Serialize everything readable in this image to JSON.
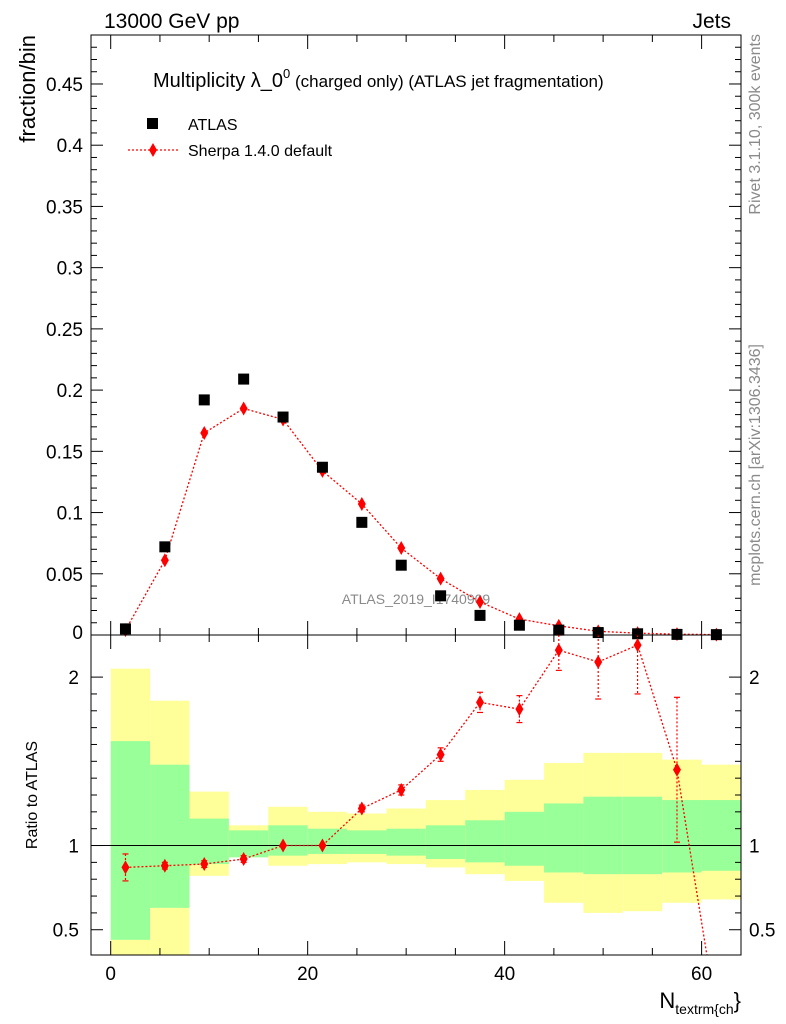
{
  "header": {
    "left": "13000 GeV pp",
    "right": "Jets"
  },
  "side_text": {
    "top": "Rivet 3.1.10,  300k events",
    "bottom": "mcplots.cern.ch [arXiv:1306.3436]"
  },
  "watermark": "ATLAS_2019_I1740909",
  "title": {
    "main": "Multiplicity λ_0",
    "sup": "0",
    "tail": " (charged only) (ATLAS jet fragmentation)"
  },
  "xlabel": {
    "main": "N",
    "sub": "textrm{ch",
    "close": "}"
  },
  "legend": {
    "data_label": "ATLAS",
    "mc_label": "Sherpa 1.4.0 default"
  },
  "colors": {
    "data": "#000000",
    "mc": "#ff0000",
    "band_inner": "#99ff99",
    "band_outer": "#ffff99"
  },
  "chart_data": [
    {
      "type": "scatter",
      "ylabel": "fraction/bin",
      "xlim": [
        -2,
        64
      ],
      "ylim": [
        0,
        0.49
      ],
      "xticks": [
        0,
        20,
        40,
        60
      ],
      "yticks": [
        0.05,
        0.1,
        0.15,
        0.2,
        0.25,
        0.3,
        0.35,
        0.4,
        0.45
      ],
      "ytick_labels": [
        "0.05",
        "0.1",
        "0.15",
        "0.2",
        "0.25",
        "0.3",
        "0.35",
        "0.4",
        "0.45"
      ],
      "y_zero_label": "0",
      "x": [
        1.5,
        5.5,
        9.5,
        13.5,
        17.5,
        21.5,
        25.5,
        29.5,
        33.5,
        37.5,
        41.5,
        45.5,
        49.5,
        53.5,
        57.5,
        61.5
      ],
      "series": [
        {
          "name": "ATLAS",
          "values": [
            0.005,
            0.072,
            0.192,
            0.209,
            0.178,
            0.137,
            0.092,
            0.057,
            0.032,
            0.016,
            0.008,
            0.004,
            0.002,
            0.001,
            0.0005,
            0.0003
          ]
        },
        {
          "name": "Sherpa 1.4.0 default",
          "values": [
            0.004,
            0.061,
            0.165,
            0.185,
            0.176,
            0.134,
            0.107,
            0.071,
            0.046,
            0.027,
            0.013,
            0.0075,
            0.003,
            0.0015,
            0.0007,
            0.0003
          ]
        }
      ]
    },
    {
      "type": "line",
      "ylabel": "Ratio to ATLAS",
      "xlim": [
        -2,
        64
      ],
      "ylim": [
        0.35,
        2.25
      ],
      "yticks": [
        0.5,
        1,
        2
      ],
      "ytick_labels": [
        "0.5",
        "1",
        "2"
      ],
      "bin_edges": [
        0,
        4,
        8,
        12,
        16,
        20,
        24,
        28,
        32,
        36,
        40,
        44,
        48,
        52,
        56,
        60,
        64
      ],
      "band_inner_lo": [
        0.44,
        0.63,
        0.89,
        0.93,
        0.94,
        0.95,
        0.95,
        0.94,
        0.92,
        0.9,
        0.88,
        0.84,
        0.83,
        0.83,
        0.84,
        0.85
      ],
      "band_inner_hi": [
        1.62,
        1.48,
        1.16,
        1.09,
        1.12,
        1.1,
        1.09,
        1.1,
        1.12,
        1.15,
        1.2,
        1.25,
        1.29,
        1.29,
        1.27,
        1.27
      ],
      "band_outer_lo": [
        0.3,
        0.3,
        0.82,
        0.93,
        0.88,
        0.89,
        0.9,
        0.89,
        0.87,
        0.83,
        0.79,
        0.66,
        0.6,
        0.61,
        0.66,
        0.68
      ],
      "band_outer_hi": [
        2.05,
        1.86,
        1.32,
        1.12,
        1.23,
        1.2,
        1.19,
        1.22,
        1.27,
        1.33,
        1.39,
        1.49,
        1.55,
        1.55,
        1.51,
        1.48
      ],
      "x": [
        1.5,
        5.5,
        9.5,
        13.5,
        17.5,
        21.5,
        25.5,
        29.5,
        33.5,
        37.5,
        41.5,
        45.5,
        49.5,
        53.5,
        57.5
      ],
      "ratio": [
        0.87,
        0.88,
        0.89,
        0.92,
        1.0,
        1.0,
        1.22,
        1.33,
        1.54,
        1.85,
        1.81,
        2.16,
        2.09,
        2.19,
        1.45
      ],
      "ratio_err": [
        0.08,
        0.02,
        0.02,
        0.02,
        0.01,
        0.01,
        0.02,
        0.03,
        0.04,
        0.06,
        0.08,
        0.12,
        0.22,
        0.29,
        0.43
      ],
      "ratio_last_offscale": {
        "x": 61.5,
        "value": 0.0
      }
    }
  ]
}
